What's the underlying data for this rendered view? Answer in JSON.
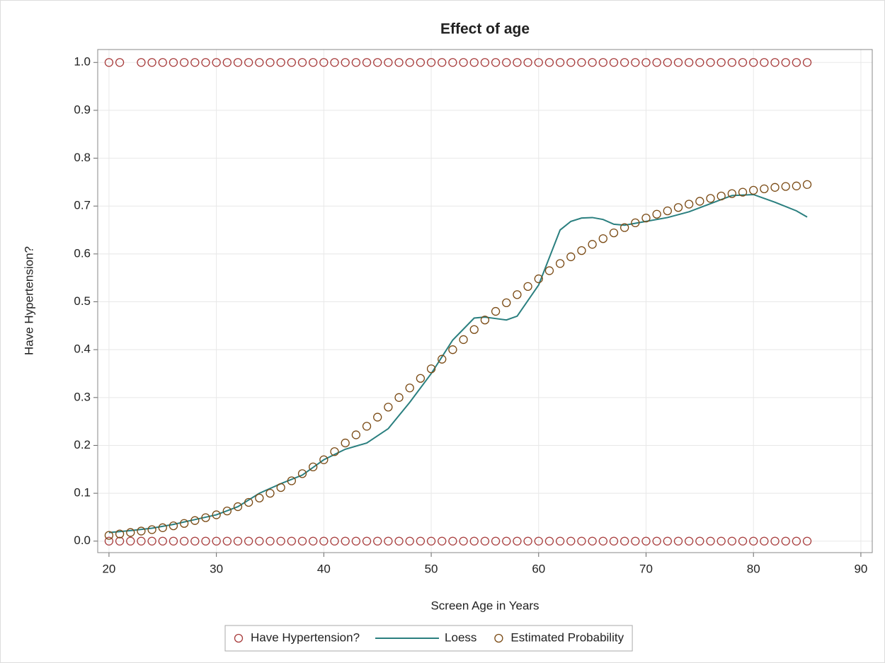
{
  "chart_data": {
    "type": "scatter",
    "title": "Effect of age",
    "x_label": "Screen Age in Years",
    "y_label": "Have Hypertension?",
    "xlim": [
      18.95,
      91.06
    ],
    "ylim": [
      -0.024,
      1.027
    ],
    "xticks": [
      20,
      30,
      40,
      50,
      60,
      70,
      80,
      90
    ],
    "yticks": [
      {
        "value": 0,
        "label": "0.0"
      },
      0.1,
      0.2,
      0.3,
      0.4,
      0.5,
      0.6,
      0.7,
      0.8,
      0.9,
      {
        "value": 1,
        "label": "1.0"
      }
    ],
    "grid": true,
    "legend": "bottom",
    "series": [
      {
        "name": "Have Hypertension?",
        "type": "scatter",
        "color": "#a83c3c",
        "x": [
          20,
          21,
          22,
          23,
          24,
          25,
          26,
          27,
          28,
          29,
          30,
          31,
          32,
          33,
          34,
          35,
          36,
          37,
          38,
          39,
          40,
          41,
          42,
          43,
          44,
          45,
          46,
          47,
          48,
          49,
          50,
          51,
          52,
          53,
          54,
          55,
          56,
          57,
          58,
          59,
          60,
          61,
          62,
          63,
          64,
          65,
          66,
          67,
          68,
          69,
          70,
          71,
          72,
          73,
          74,
          75,
          76,
          77,
          78,
          79,
          80,
          81,
          82,
          83,
          84,
          85,
          20,
          21,
          23,
          24,
          25,
          26,
          27,
          28,
          29,
          30,
          31,
          32,
          33,
          34,
          35,
          36,
          37,
          38,
          39,
          40,
          41,
          42,
          43,
          44,
          45,
          46,
          47,
          48,
          49,
          50,
          51,
          52,
          53,
          54,
          55,
          56,
          57,
          58,
          59,
          60,
          61,
          62,
          63,
          64,
          65,
          66,
          67,
          68,
          69,
          70,
          71,
          72,
          73,
          74,
          75,
          76,
          77,
          78,
          79,
          80,
          81,
          82,
          83,
          84,
          85
        ],
        "values": [
          0,
          0,
          0,
          0,
          0,
          0,
          0,
          0,
          0,
          0,
          0,
          0,
          0,
          0,
          0,
          0,
          0,
          0,
          0,
          0,
          0,
          0,
          0,
          0,
          0,
          0,
          0,
          0,
          0,
          0,
          0,
          0,
          0,
          0,
          0,
          0,
          0,
          0,
          0,
          0,
          0,
          0,
          0,
          0,
          0,
          0,
          0,
          0,
          0,
          0,
          0,
          0,
          0,
          0,
          0,
          0,
          0,
          0,
          0,
          0,
          0,
          0,
          0,
          0,
          0,
          0,
          1,
          1,
          1,
          1,
          1,
          1,
          1,
          1,
          1,
          1,
          1,
          1,
          1,
          1,
          1,
          1,
          1,
          1,
          1,
          1,
          1,
          1,
          1,
          1,
          1,
          1,
          1,
          1,
          1,
          1,
          1,
          1,
          1,
          1,
          1,
          1,
          1,
          1,
          1,
          1,
          1,
          1,
          1,
          1,
          1,
          1,
          1,
          1,
          1,
          1,
          1,
          1,
          1,
          1,
          1,
          1,
          1,
          1,
          1,
          1,
          1,
          1,
          1,
          1,
          1
        ]
      },
      {
        "name": "Loess",
        "type": "line",
        "color": "#2a7f7f",
        "x": [
          20,
          22,
          24,
          26,
          28,
          30,
          32,
          34,
          36,
          38,
          40,
          42,
          44,
          46,
          48,
          50,
          52,
          54,
          55,
          56,
          57,
          58,
          60,
          62,
          63,
          64,
          65,
          66,
          67,
          68,
          70,
          72,
          74,
          76,
          78,
          80,
          82,
          84,
          85
        ],
        "values": [
          0.018,
          0.022,
          0.027,
          0.035,
          0.045,
          0.055,
          0.072,
          0.1,
          0.12,
          0.138,
          0.17,
          0.192,
          0.205,
          0.235,
          0.29,
          0.35,
          0.42,
          0.466,
          0.468,
          0.465,
          0.462,
          0.47,
          0.535,
          0.65,
          0.668,
          0.675,
          0.676,
          0.672,
          0.662,
          0.66,
          0.668,
          0.676,
          0.688,
          0.705,
          0.722,
          0.724,
          0.708,
          0.69,
          0.677
        ]
      },
      {
        "name": "Estimated Probability",
        "type": "scatter",
        "color": "#7a4a14",
        "x": [
          20,
          21,
          22,
          23,
          24,
          25,
          26,
          27,
          28,
          29,
          30,
          31,
          32,
          33,
          34,
          35,
          36,
          37,
          38,
          39,
          40,
          41,
          42,
          43,
          44,
          45,
          46,
          47,
          48,
          49,
          50,
          51,
          52,
          53,
          54,
          55,
          56,
          57,
          58,
          59,
          60,
          61,
          62,
          63,
          64,
          65,
          66,
          67,
          68,
          69,
          70,
          71,
          72,
          73,
          74,
          75,
          76,
          77,
          78,
          79,
          80,
          81,
          82,
          83,
          84,
          85
        ],
        "values": [
          0.012,
          0.015,
          0.018,
          0.021,
          0.024,
          0.028,
          0.032,
          0.037,
          0.043,
          0.049,
          0.055,
          0.063,
          0.072,
          0.081,
          0.09,
          0.1,
          0.112,
          0.126,
          0.141,
          0.155,
          0.17,
          0.187,
          0.205,
          0.222,
          0.24,
          0.259,
          0.28,
          0.3,
          0.32,
          0.34,
          0.36,
          0.38,
          0.4,
          0.421,
          0.442,
          0.462,
          0.48,
          0.498,
          0.515,
          0.532,
          0.548,
          0.565,
          0.58,
          0.594,
          0.607,
          0.62,
          0.632,
          0.644,
          0.655,
          0.665,
          0.675,
          0.683,
          0.69,
          0.697,
          0.704,
          0.71,
          0.716,
          0.721,
          0.726,
          0.729,
          0.733,
          0.736,
          0.739,
          0.741,
          0.742,
          0.745
        ]
      }
    ]
  }
}
